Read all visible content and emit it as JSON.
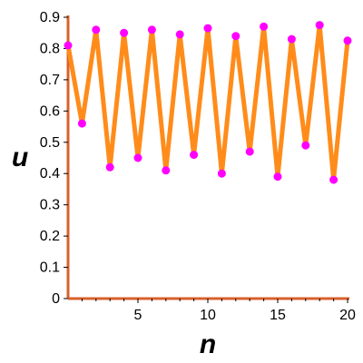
{
  "chart_data": {
    "type": "line",
    "xlabel": "n",
    "ylabel": "u",
    "xlim": [
      0,
      20
    ],
    "ylim": [
      0,
      0.9
    ],
    "x_ticks": [
      "5",
      "10",
      "15",
      "20"
    ],
    "y_ticks": [
      "0",
      "0.1",
      "0.2",
      "0.3",
      "0.4",
      "0.5",
      "0.6",
      "0.7",
      "0.8",
      "0.9"
    ],
    "grid": false,
    "series": [
      {
        "x": [
          0,
          1,
          2,
          3,
          4,
          5,
          6,
          7,
          8,
          9,
          10,
          11,
          12,
          13,
          14,
          15,
          16,
          17,
          18,
          19,
          20
        ],
        "values": [
          0.81,
          0.56,
          0.86,
          0.42,
          0.85,
          0.45,
          0.86,
          0.41,
          0.845,
          0.46,
          0.865,
          0.4,
          0.84,
          0.47,
          0.87,
          0.39,
          0.83,
          0.49,
          0.875,
          0.38,
          0.825
        ],
        "line_color": "#ff8c1a",
        "marker_color": "#ff00ff"
      }
    ],
    "axis_color": "#d9602b"
  }
}
